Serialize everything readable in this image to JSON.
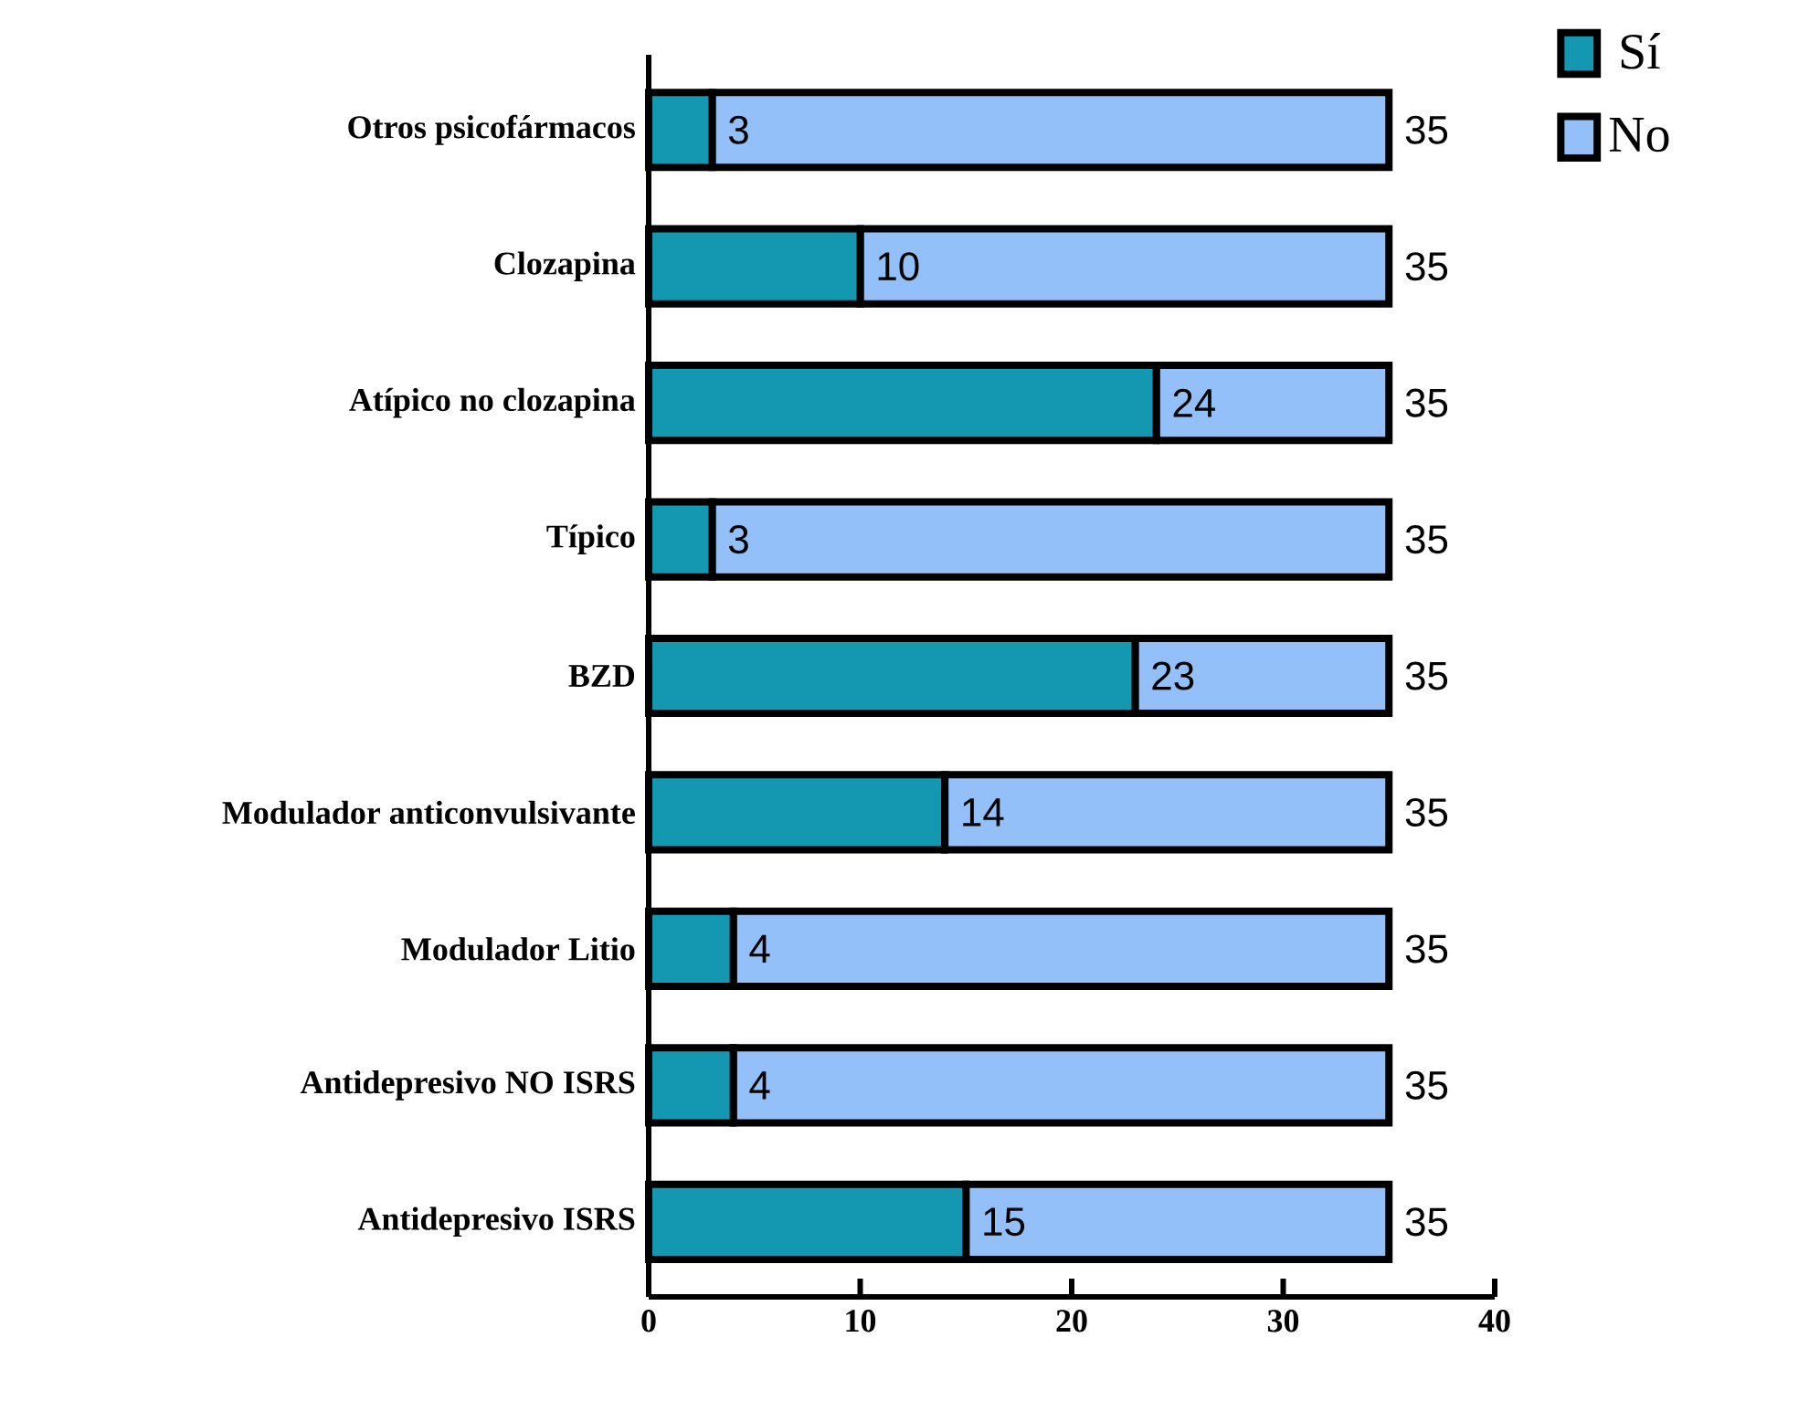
{
  "chart_data": {
    "type": "bar",
    "orientation": "horizontal",
    "stacked": true,
    "categories": [
      "Otros psicofármacos",
      "Clozapina",
      "Atípico no clozapina",
      "Típico",
      "BZD",
      "Modulador anticonvulsivante",
      "Modulador Litio",
      "Antidepresivo NO ISRS",
      "Antidepresivo ISRS"
    ],
    "series": [
      {
        "name": "Sí",
        "color": "#1497b0",
        "values": [
          3,
          10,
          24,
          3,
          23,
          14,
          4,
          4,
          15
        ],
        "value_labels": [
          "3",
          "10",
          "24",
          "3",
          "23",
          "14",
          "4",
          "4",
          "15"
        ]
      },
      {
        "name": "No",
        "color": "#93c0f8",
        "values": [
          32,
          25,
          11,
          32,
          12,
          21,
          31,
          31,
          20
        ]
      }
    ],
    "totals": [
      "35",
      "35",
      "35",
      "35",
      "35",
      "35",
      "35",
      "35",
      "35"
    ],
    "xlim": [
      0,
      40
    ],
    "xticks": [
      0,
      10,
      20,
      30,
      40
    ],
    "grid": false,
    "legend": "top right"
  }
}
